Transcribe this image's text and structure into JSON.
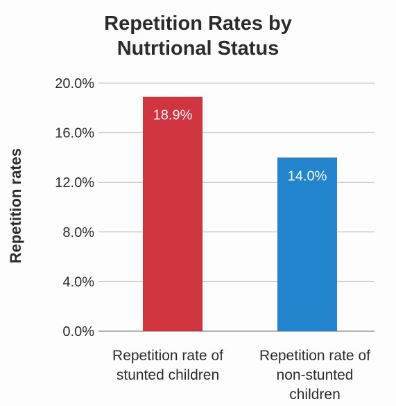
{
  "chart_data": {
    "type": "bar",
    "title": "Repetition Rates by Nutrtional Status",
    "title_lines": [
      "Repetition Rates by",
      "Nutrtional Status"
    ],
    "ylabel": "Repetition rates",
    "xlabel": "",
    "ylim": [
      0,
      20
    ],
    "yticks": [
      "0.0%",
      "4.0%",
      "8.0%",
      "12.0%",
      "16.0%",
      "20.0%"
    ],
    "grid": true,
    "categories": [
      "Repetition rate of stunted children",
      "Repetition rate of non-stunted children"
    ],
    "category_lines": [
      [
        "Repetition rate of",
        "stunted children"
      ],
      [
        "Repetition rate of",
        "non-stunted",
        "children"
      ]
    ],
    "values": [
      18.9,
      14.0
    ],
    "data_labels": [
      "18.9%",
      "14.0%"
    ],
    "colors": [
      "#d0343f",
      "#2485cf"
    ]
  }
}
